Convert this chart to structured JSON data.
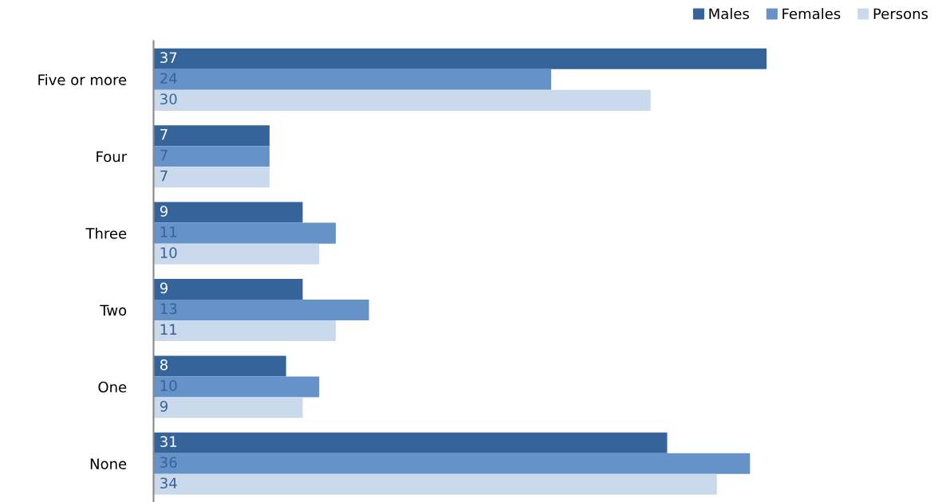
{
  "chart_data": {
    "type": "bar",
    "orientation": "horizontal",
    "categories": [
      "Five or more",
      "Four",
      "Three",
      "Two",
      "One",
      "None"
    ],
    "series": [
      {
        "name": "Males",
        "color": "#34649a",
        "values": [
          37,
          7,
          9,
          9,
          8,
          31
        ]
      },
      {
        "name": "Females",
        "color": "#6593c8",
        "values": [
          24,
          7,
          11,
          13,
          10,
          36
        ]
      },
      {
        "name": "Persons",
        "color": "#cbd9ec",
        "values": [
          30,
          7,
          10,
          11,
          9,
          34
        ]
      }
    ],
    "data_labels": true,
    "legend": "top right",
    "grid": false
  }
}
